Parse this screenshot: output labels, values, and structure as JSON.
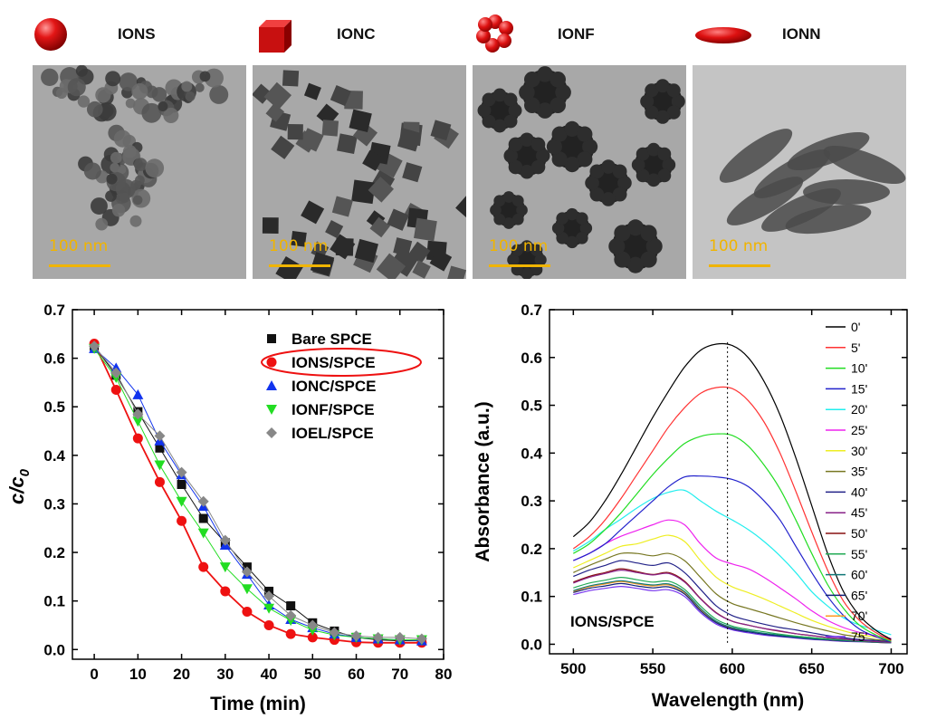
{
  "nanoparticles": [
    {
      "label": "IONS",
      "shape": "sphere-icon",
      "scale_label": "100 nm"
    },
    {
      "label": "IONC",
      "shape": "cube-icon",
      "scale_label": "100 nm"
    },
    {
      "label": "IONF",
      "shape": "flower-icon",
      "scale_label": "100 nm"
    },
    {
      "label": "IONN",
      "shape": "ellipsoid-icon",
      "scale_label": "100 nm"
    }
  ],
  "colors": {
    "shape": "#dd1111",
    "scale": "#f0b400"
  },
  "chart_data": [
    {
      "type": "scatter",
      "xlabel": "Time (min)",
      "ylabel_main": "c/c",
      "ylabel_sub": "0",
      "xlim": [
        -5,
        80
      ],
      "ylim": [
        -0.02,
        0.7
      ],
      "xticks": [
        0,
        10,
        20,
        30,
        40,
        50,
        60,
        70,
        80
      ],
      "yticks": [
        0.0,
        0.1,
        0.2,
        0.3,
        0.4,
        0.5,
        0.6,
        0.7
      ],
      "legend_position": "top-right",
      "highlighted_series": "IONS/SPCE",
      "x": [
        0,
        5,
        10,
        15,
        20,
        25,
        30,
        35,
        40,
        45,
        50,
        55,
        60,
        65,
        70,
        75
      ],
      "series": [
        {
          "name": "Bare SPCE",
          "marker": "square",
          "color": "#111111",
          "values": [
            0.625,
            0.565,
            0.49,
            0.415,
            0.34,
            0.27,
            0.22,
            0.17,
            0.12,
            0.09,
            0.055,
            0.038,
            0.025,
            0.02,
            0.018,
            0.018
          ]
        },
        {
          "name": "IONS/SPCE",
          "marker": "circle",
          "color": "#ee1111",
          "values": [
            0.63,
            0.535,
            0.435,
            0.345,
            0.265,
            0.17,
            0.12,
            0.078,
            0.05,
            0.032,
            0.025,
            0.02,
            0.015,
            0.014,
            0.014,
            0.014
          ]
        },
        {
          "name": "IONC/SPCE",
          "marker": "triangle-up",
          "color": "#1133ee",
          "values": [
            0.62,
            0.58,
            0.525,
            0.43,
            0.36,
            0.295,
            0.215,
            0.155,
            0.092,
            0.062,
            0.045,
            0.032,
            0.025,
            0.022,
            0.02,
            0.018
          ]
        },
        {
          "name": "IONF/SPCE",
          "marker": "triangle-down",
          "color": "#22dd22",
          "values": [
            0.62,
            0.56,
            0.47,
            0.38,
            0.305,
            0.24,
            0.17,
            0.125,
            0.085,
            0.06,
            0.04,
            0.03,
            0.025,
            0.022,
            0.02,
            0.02
          ]
        },
        {
          "name": "IOEL/SPCE",
          "marker": "diamond",
          "color": "#888888",
          "values": [
            0.625,
            0.57,
            0.485,
            0.44,
            0.365,
            0.305,
            0.225,
            0.16,
            0.11,
            0.07,
            0.05,
            0.035,
            0.028,
            0.025,
            0.025,
            0.022
          ]
        }
      ]
    },
    {
      "type": "line",
      "xlabel": "Wavelength (nm)",
      "ylabel": "Absorbance (a.u.)",
      "xlim": [
        485,
        710
      ],
      "ylim": [
        -0.02,
        0.7
      ],
      "xticks": [
        500,
        550,
        600,
        650,
        700
      ],
      "yticks": [
        0.0,
        0.1,
        0.2,
        0.3,
        0.4,
        0.5,
        0.6,
        0.7
      ],
      "legend_position": "top-right",
      "annotation": "IONS/SPCE",
      "reference_line_x": 597,
      "x": [
        500,
        510,
        520,
        530,
        540,
        550,
        560,
        570,
        580,
        590,
        600,
        610,
        620,
        630,
        640,
        650,
        660,
        670,
        680,
        690,
        700
      ],
      "series": [
        {
          "name": "0'",
          "color": "#000000",
          "values": [
            0.225,
            0.255,
            0.3,
            0.355,
            0.415,
            0.475,
            0.53,
            0.58,
            0.615,
            0.628,
            0.625,
            0.6,
            0.55,
            0.48,
            0.39,
            0.29,
            0.19,
            0.11,
            0.06,
            0.03,
            0.01
          ]
        },
        {
          "name": "5'",
          "color": "#ff3333",
          "values": [
            0.2,
            0.225,
            0.26,
            0.305,
            0.355,
            0.405,
            0.455,
            0.495,
            0.525,
            0.537,
            0.535,
            0.51,
            0.465,
            0.4,
            0.32,
            0.235,
            0.155,
            0.09,
            0.05,
            0.025,
            0.008
          ]
        },
        {
          "name": "10'",
          "color": "#22dd22",
          "values": [
            0.19,
            0.21,
            0.24,
            0.275,
            0.315,
            0.355,
            0.39,
            0.42,
            0.435,
            0.44,
            0.437,
            0.415,
            0.375,
            0.325,
            0.26,
            0.19,
            0.125,
            0.075,
            0.04,
            0.02,
            0.006
          ]
        },
        {
          "name": "15'",
          "color": "#2222cc",
          "values": [
            0.175,
            0.19,
            0.21,
            0.24,
            0.27,
            0.3,
            0.33,
            0.35,
            0.352,
            0.35,
            0.345,
            0.33,
            0.3,
            0.26,
            0.205,
            0.15,
            0.1,
            0.06,
            0.032,
            0.016,
            0.005
          ]
        },
        {
          "name": "20'",
          "color": "#22eeee",
          "values": [
            0.195,
            0.215,
            0.24,
            0.262,
            0.285,
            0.305,
            0.318,
            0.322,
            0.3,
            0.278,
            0.26,
            0.24,
            0.215,
            0.185,
            0.15,
            0.11,
            0.08,
            0.055,
            0.04,
            0.03,
            0.02
          ]
        },
        {
          "name": "25'",
          "color": "#ee22ee",
          "values": [
            0.175,
            0.19,
            0.21,
            0.226,
            0.238,
            0.25,
            0.26,
            0.25,
            0.21,
            0.18,
            0.168,
            0.158,
            0.14,
            0.118,
            0.095,
            0.07,
            0.05,
            0.035,
            0.025,
            0.018,
            0.012
          ]
        },
        {
          "name": "30'",
          "color": "#eeee22",
          "values": [
            0.16,
            0.175,
            0.19,
            0.205,
            0.21,
            0.22,
            0.228,
            0.215,
            0.175,
            0.14,
            0.12,
            0.108,
            0.095,
            0.08,
            0.065,
            0.05,
            0.038,
            0.028,
            0.02,
            0.015,
            0.01
          ]
        },
        {
          "name": "35'",
          "color": "#777722",
          "values": [
            0.15,
            0.165,
            0.178,
            0.19,
            0.19,
            0.185,
            0.19,
            0.175,
            0.14,
            0.105,
            0.085,
            0.075,
            0.065,
            0.055,
            0.045,
            0.036,
            0.028,
            0.02,
            0.015,
            0.01,
            0.007
          ]
        },
        {
          "name": "40'",
          "color": "#222288",
          "values": [
            0.142,
            0.155,
            0.165,
            0.175,
            0.17,
            0.165,
            0.17,
            0.15,
            0.115,
            0.08,
            0.06,
            0.05,
            0.042,
            0.035,
            0.03,
            0.024,
            0.018,
            0.014,
            0.01,
            0.008,
            0.006
          ]
        },
        {
          "name": "45'",
          "color": "#882288",
          "values": [
            0.128,
            0.14,
            0.148,
            0.155,
            0.15,
            0.145,
            0.148,
            0.13,
            0.095,
            0.065,
            0.048,
            0.04,
            0.033,
            0.028,
            0.022,
            0.018,
            0.014,
            0.011,
            0.008,
            0.006,
            0.004
          ]
        },
        {
          "name": "50'",
          "color": "#881111",
          "values": [
            0.13,
            0.142,
            0.15,
            0.158,
            0.152,
            0.146,
            0.15,
            0.132,
            0.096,
            0.066,
            0.048,
            0.04,
            0.033,
            0.027,
            0.022,
            0.018,
            0.014,
            0.011,
            0.008,
            0.006,
            0.004
          ]
        },
        {
          "name": "55'",
          "color": "#22aa55",
          "values": [
            0.118,
            0.128,
            0.134,
            0.14,
            0.135,
            0.13,
            0.132,
            0.115,
            0.08,
            0.052,
            0.038,
            0.031,
            0.026,
            0.021,
            0.017,
            0.014,
            0.011,
            0.009,
            0.007,
            0.005,
            0.004
          ]
        },
        {
          "name": "60'",
          "color": "#117777",
          "values": [
            0.112,
            0.122,
            0.128,
            0.133,
            0.128,
            0.124,
            0.126,
            0.11,
            0.075,
            0.048,
            0.035,
            0.028,
            0.023,
            0.019,
            0.015,
            0.012,
            0.01,
            0.008,
            0.006,
            0.005,
            0.003
          ]
        },
        {
          "name": "65'",
          "color": "#112277",
          "values": [
            0.108,
            0.117,
            0.122,
            0.127,
            0.122,
            0.118,
            0.12,
            0.105,
            0.07,
            0.045,
            0.032,
            0.026,
            0.021,
            0.017,
            0.014,
            0.011,
            0.009,
            0.007,
            0.006,
            0.004,
            0.003
          ]
        },
        {
          "name": "70'",
          "color": "#ff9922",
          "values": [
            0.11,
            0.12,
            0.126,
            0.131,
            0.126,
            0.122,
            0.124,
            0.108,
            0.073,
            0.047,
            0.034,
            0.027,
            0.022,
            0.018,
            0.015,
            0.012,
            0.009,
            0.007,
            0.006,
            0.004,
            0.003
          ]
        },
        {
          "name": "75'",
          "color": "#7733ee",
          "values": [
            0.104,
            0.112,
            0.117,
            0.121,
            0.117,
            0.112,
            0.114,
            0.1,
            0.066,
            0.042,
            0.03,
            0.024,
            0.019,
            0.016,
            0.013,
            0.01,
            0.008,
            0.006,
            0.005,
            0.004,
            0.003
          ]
        }
      ]
    }
  ]
}
